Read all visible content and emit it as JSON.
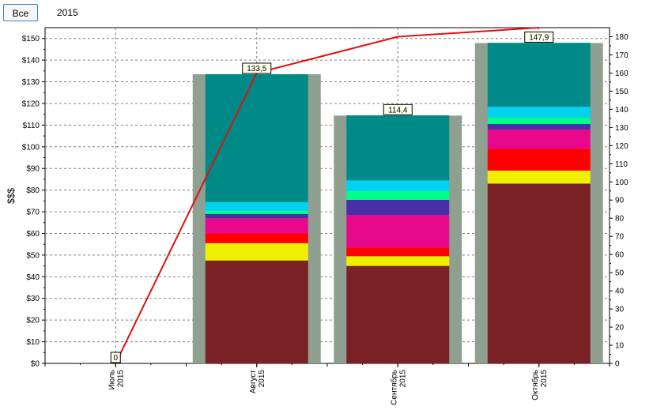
{
  "toolbar": {
    "tab_all_label": "Все",
    "tab_year_label": "2015"
  },
  "chart_data": {
    "type": "bar",
    "stacked": true,
    "ylabel": "$$$",
    "ylim": [
      0,
      155
    ],
    "y2lim": [
      0,
      185
    ],
    "y_ticks": [
      "$0",
      "$10",
      "$20",
      "$30",
      "$40",
      "$50",
      "$60",
      "$70",
      "$80",
      "$90",
      "$100",
      "$110",
      "$120",
      "$130",
      "$140",
      "$150"
    ],
    "y2_ticks": [
      "0",
      "10",
      "20",
      "30",
      "40",
      "50",
      "60",
      "70",
      "80",
      "90",
      "100",
      "110",
      "120",
      "130",
      "140",
      "150",
      "160",
      "170",
      "180"
    ],
    "grid": true,
    "categories": [
      {
        "month": "Июль",
        "year": "2015"
      },
      {
        "month": "Август",
        "year": "2015"
      },
      {
        "month": "Сентябрь",
        "year": "2015"
      },
      {
        "month": "Октябрь",
        "year": "2015"
      }
    ],
    "totals": [
      0,
      133.5,
      114.4,
      147.9
    ],
    "total_labels": [
      "0",
      "133,5",
      "114,4",
      "147,9"
    ],
    "segment_colors": [
      "#7b2226",
      "#eef000",
      "#ff0000",
      "#e8088c",
      "#4a2ea8",
      "#00ff8a",
      "#00d2f0",
      "#008a87"
    ],
    "segments": [
      [
        0,
        0,
        0,
        0,
        0,
        0,
        0,
        0
      ],
      [
        47.5,
        8,
        4.5,
        7,
        2,
        1.5,
        4,
        59
      ],
      [
        45,
        4.5,
        4,
        15,
        7,
        4,
        5,
        30
      ],
      [
        83,
        6,
        10,
        9,
        2.5,
        3,
        5,
        29.5
      ]
    ],
    "line": {
      "color": "#e01010",
      "values": [
        0,
        160,
        180,
        185
      ],
      "axis": "right"
    }
  }
}
